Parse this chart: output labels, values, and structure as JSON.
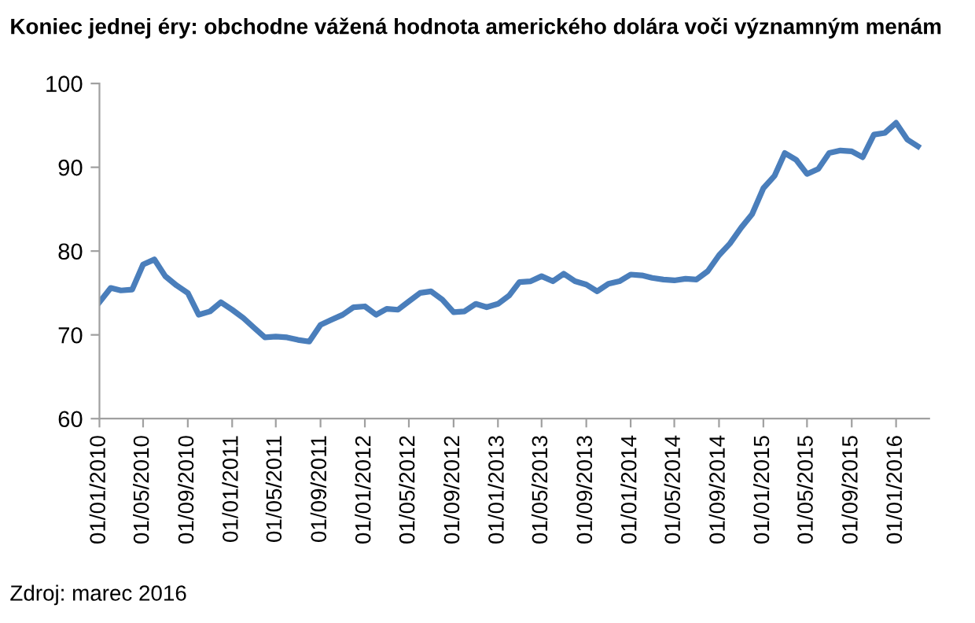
{
  "chart_data": {
    "type": "line",
    "title": "Koniec jednej éry: obchodne vážená hodnota amerického dolára voči významným menám",
    "annotations": [
      "Zdroj: marec 2016"
    ],
    "x": [
      "2010-01",
      "2010-02",
      "2010-03",
      "2010-04",
      "2010-05",
      "2010-06",
      "2010-07",
      "2010-08",
      "2010-09",
      "2010-10",
      "2010-11",
      "2010-12",
      "2011-01",
      "2011-02",
      "2011-03",
      "2011-04",
      "2011-05",
      "2011-06",
      "2011-07",
      "2011-08",
      "2011-09",
      "2011-10",
      "2011-11",
      "2011-12",
      "2012-01",
      "2012-02",
      "2012-03",
      "2012-04",
      "2012-05",
      "2012-06",
      "2012-07",
      "2012-08",
      "2012-09",
      "2012-10",
      "2012-11",
      "2012-12",
      "2013-01",
      "2013-02",
      "2013-03",
      "2013-04",
      "2013-05",
      "2013-06",
      "2013-07",
      "2013-08",
      "2013-09",
      "2013-10",
      "2013-11",
      "2013-12",
      "2014-01",
      "2014-02",
      "2014-03",
      "2014-04",
      "2014-05",
      "2014-06",
      "2014-07",
      "2014-08",
      "2014-09",
      "2014-10",
      "2014-11",
      "2014-12",
      "2015-01",
      "2015-02",
      "2015-03",
      "2015-04",
      "2015-05",
      "2015-06",
      "2015-07",
      "2015-08",
      "2015-09",
      "2015-10",
      "2015-11",
      "2015-12",
      "2016-01",
      "2016-02",
      "2016-03"
    ],
    "series": [
      {
        "color": "#4a7ebb",
        "values": [
          73.9,
          75.6,
          75.3,
          75.4,
          78.4,
          79.0,
          77.0,
          75.9,
          75.0,
          72.4,
          72.8,
          73.9,
          73.0,
          72.0,
          70.9,
          69.7,
          69.8,
          69.7,
          69.4,
          69.2,
          71.2,
          71.8,
          72.4,
          73.3,
          73.4,
          72.4,
          73.1,
          73.0,
          74.0,
          75.0,
          75.2,
          74.2,
          72.7,
          72.8,
          73.7,
          73.3,
          73.7,
          74.7,
          76.3,
          76.4,
          77.0,
          76.4,
          77.3,
          76.4,
          76.0,
          75.2,
          76.1,
          76.4,
          77.2,
          77.1,
          76.8,
          76.6,
          76.5,
          76.7,
          76.6,
          77.6,
          79.5,
          80.9,
          82.8,
          84.4,
          87.5,
          89.0,
          91.7,
          90.9,
          89.2,
          89.8,
          91.7,
          92.0,
          91.9,
          91.2,
          93.9,
          94.1,
          95.3,
          93.3,
          92.5
        ]
      }
    ],
    "xlim": [
      "2010-01",
      "2016-04"
    ],
    "xticks": [
      {
        "value": "2010-01",
        "label": "01/01/2010"
      },
      {
        "value": "2010-05",
        "label": "01/05/2010"
      },
      {
        "value": "2010-09",
        "label": "01/09/2010"
      },
      {
        "value": "2011-01",
        "label": "01/01/2011"
      },
      {
        "value": "2011-05",
        "label": "01/05/2011"
      },
      {
        "value": "2011-09",
        "label": "01/09/2011"
      },
      {
        "value": "2012-01",
        "label": "01/01/2012"
      },
      {
        "value": "2012-05",
        "label": "01/05/2012"
      },
      {
        "value": "2012-09",
        "label": "01/09/2012"
      },
      {
        "value": "2013-01",
        "label": "01/01/2013"
      },
      {
        "value": "2013-05",
        "label": "01/05/2013"
      },
      {
        "value": "2013-09",
        "label": "01/09/2013"
      },
      {
        "value": "2014-01",
        "label": "01/01/2014"
      },
      {
        "value": "2014-05",
        "label": "01/05/2014"
      },
      {
        "value": "2014-09",
        "label": "01/09/2014"
      },
      {
        "value": "2015-01",
        "label": "01/01/2015"
      },
      {
        "value": "2015-05",
        "label": "01/05/2015"
      },
      {
        "value": "2015-09",
        "label": "01/09/2015"
      },
      {
        "value": "2016-01",
        "label": "01/01/2016"
      }
    ],
    "ylim": [
      60,
      100
    ],
    "yticks": [
      60,
      70,
      80,
      90,
      100
    ],
    "grid": false,
    "legend": false,
    "marker": "none",
    "line_style": "solid"
  }
}
